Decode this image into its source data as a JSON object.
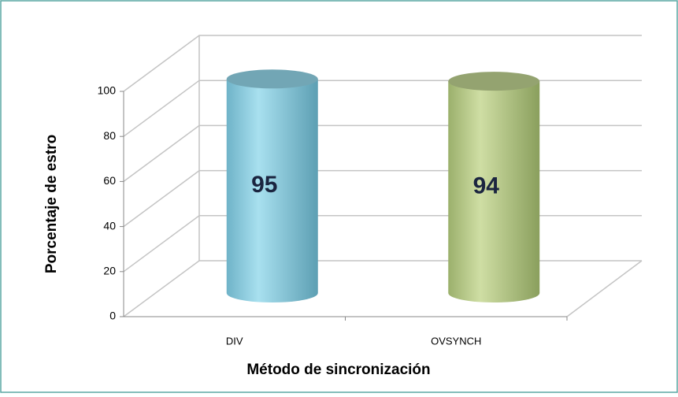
{
  "chart_data": {
    "type": "bar3d",
    "categories": [
      "DIV",
      "OVSYNCH"
    ],
    "values": [
      95,
      94
    ],
    "colors": [
      "#8fd0e2",
      "#b9cc8c"
    ],
    "ylim": [
      0,
      100
    ],
    "yticks": [
      0,
      20,
      40,
      60,
      80,
      100
    ],
    "grid": true,
    "y_label": "Porcentaje de estro",
    "x_label": "Método de sincronización"
  }
}
